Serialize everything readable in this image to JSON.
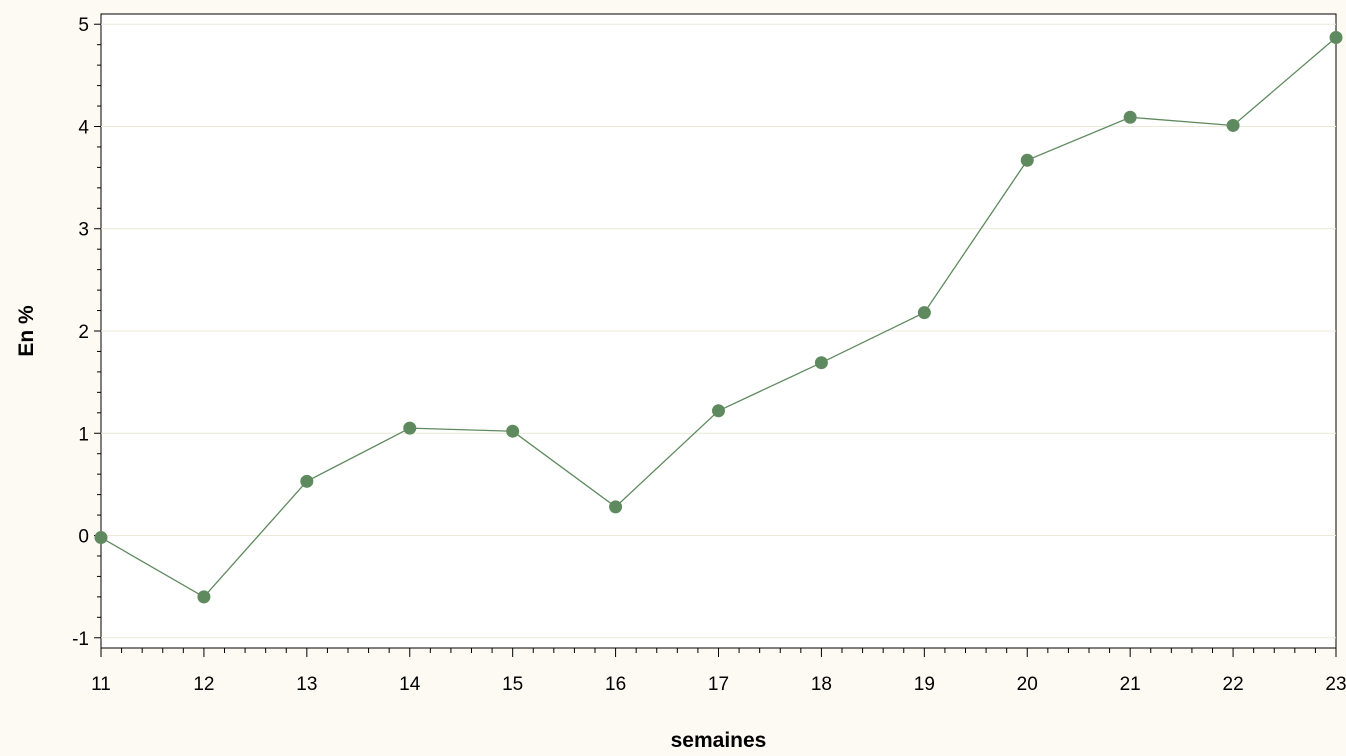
{
  "chart_data": {
    "type": "line",
    "title": "",
    "xlabel": "semaines",
    "ylabel": "En %",
    "x": [
      11,
      12,
      13,
      14,
      15,
      16,
      17,
      18,
      19,
      20,
      21,
      22,
      23
    ],
    "series": [
      {
        "values": [
          -0.02,
          -0.6,
          0.53,
          1.05,
          1.02,
          0.28,
          1.22,
          1.69,
          2.18,
          3.67,
          4.09,
          4.01,
          4.87
        ],
        "color": "#5f8a5f"
      }
    ],
    "xlim": [
      11,
      23
    ],
    "ylim": [
      -1.1,
      5.1
    ],
    "x_ticks": [
      "11",
      "12",
      "13",
      "14",
      "15",
      "16",
      "17",
      "18",
      "19",
      "20",
      "21",
      "22",
      "23"
    ],
    "y_ticks": [
      "-1",
      "0",
      "1",
      "2",
      "3",
      "4",
      "5"
    ],
    "x_minor_per_major": 4,
    "y_minor_per_major": 4,
    "grid": "horizontal",
    "legend": "none",
    "colors": {
      "background": "#fdfaf3",
      "plot_background": "#ffffff",
      "gridline": "#ece9d8",
      "axis": "#000000",
      "series": "#5f8a5f"
    }
  }
}
